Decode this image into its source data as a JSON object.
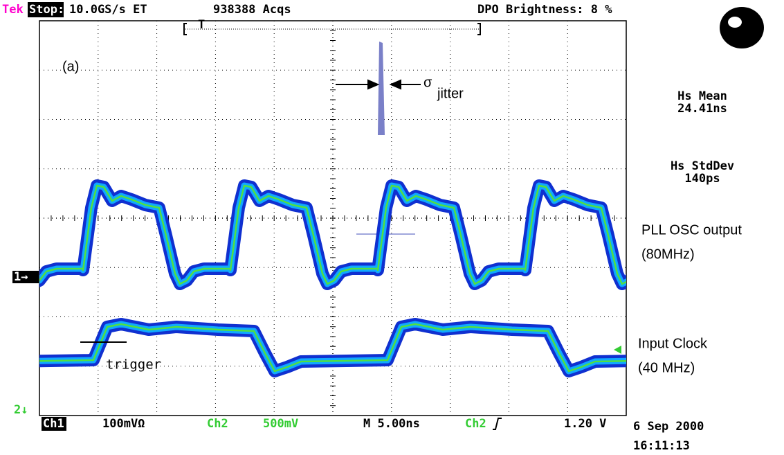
{
  "header": {
    "brand": "Tek",
    "state": "Stop:",
    "rate": "10.0GS/s ET",
    "acqs": "938388 Acqs",
    "brightness": "DPO Brightness: 8 %",
    "trigger_pos": "T"
  },
  "screen": {
    "panel_label": "(a)",
    "sigma": "σ",
    "sigma_sub": "jitter",
    "trigger_note": "trigger",
    "ch1_marker": "1→",
    "ch2_marker": "2↓"
  },
  "measurements": [
    {
      "name": "Hs Mean",
      "value": "24.41ns"
    },
    {
      "name": "Hs StdDev",
      "value": "140ps"
    }
  ],
  "annotations": [
    {
      "line1": "PLL OSC output",
      "line2": "(80MHz)"
    },
    {
      "line1": "Input Clock",
      "line2": "(40 MHz)"
    }
  ],
  "footer": {
    "ch1": "Ch1",
    "ch1_scale": "100mVΩ",
    "ch2": "Ch2",
    "ch2_scale": "500mV",
    "timebase": "M 5.00ns",
    "trig_source": "Ch2",
    "trig_level": "1.20 V",
    "date": "6 Sep 2000",
    "time": "16:11:13"
  }
}
